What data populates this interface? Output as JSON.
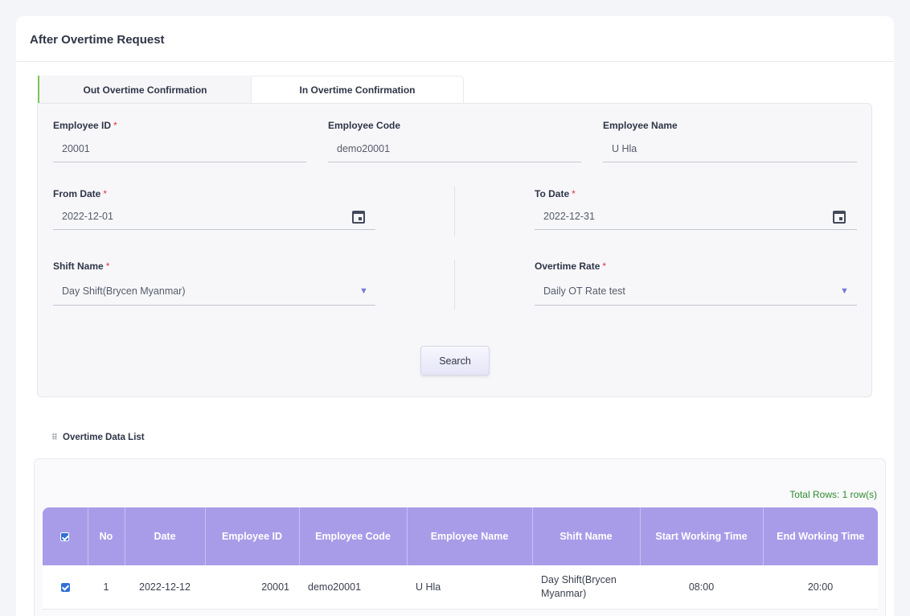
{
  "page": {
    "title": "After Overtime Request"
  },
  "tabs": [
    {
      "label": "Out Overtime Confirmation",
      "active": true
    },
    {
      "label": "In Overtime Confirmation",
      "active": false
    }
  ],
  "form": {
    "employee_id": {
      "label": "Employee ID",
      "required_mark": "*",
      "value": "20001"
    },
    "employee_code": {
      "label": "Employee Code",
      "value": "demo20001"
    },
    "employee_name": {
      "label": "Employee Name",
      "value": "U Hla"
    },
    "from_date": {
      "label": "From Date",
      "required_mark": "*",
      "value": "2022-12-01",
      "icon": "calendar-icon"
    },
    "to_date": {
      "label": "To Date",
      "required_mark": "*",
      "value": "2022-12-31",
      "icon": "calendar-icon"
    },
    "shift_name": {
      "label": "Shift Name",
      "required_mark": "*",
      "value": "Day Shift(Brycen Myanmar)",
      "arrow": "▼"
    },
    "overtime_rate": {
      "label": "Overtime Rate",
      "required_mark": "*",
      "value": "Daily OT Rate test",
      "arrow": "▼"
    },
    "search_label": "Search"
  },
  "list": {
    "title": "Overtime Data List",
    "total_rows": "Total Rows: 1 row(s)",
    "columns": [
      "No",
      "Date",
      "Employee ID",
      "Employee Code",
      "Employee Name",
      "Shift Name",
      "Start Working Time",
      "End Working Time"
    ],
    "rows": [
      {
        "checked": true,
        "no": "1",
        "date": "2022-12-12",
        "employee_id": "20001",
        "employee_code": "demo20001",
        "employee_name": "U Hla",
        "shift_name": "Day Shift(Brycen Myanmar)",
        "start_time": "08:00",
        "end_time": "20:00"
      }
    ]
  },
  "colors": {
    "header_bg": "#a89ce9",
    "active_tab_accent": "#7bc45a",
    "required": "#e0344a",
    "total_rows_text": "#2d8a2d",
    "shift_cell_bg": "#fbdde6",
    "time_cell_bg": "#fdf2d2"
  }
}
